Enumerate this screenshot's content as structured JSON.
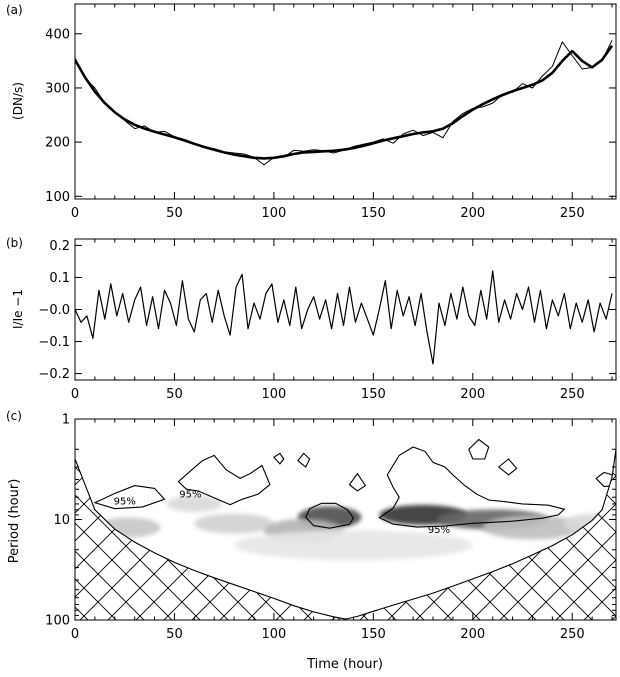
{
  "chart_data": [
    {
      "panel_label": "(a)",
      "type": "line",
      "ylabel": "(DN/s)",
      "xlim": [
        0,
        272
      ],
      "ylim": [
        95,
        455
      ],
      "x_ticks": [
        0,
        50,
        100,
        150,
        200,
        250
      ],
      "y_ticks": [
        100,
        200,
        300,
        400
      ],
      "series": [
        {
          "style": "thin-raw",
          "x": [
            0,
            5,
            10,
            15,
            20,
            25,
            30,
            35,
            40,
            45,
            50,
            55,
            60,
            65,
            70,
            75,
            80,
            85,
            90,
            95,
            100,
            105,
            110,
            115,
            120,
            125,
            130,
            135,
            140,
            145,
            150,
            155,
            160,
            165,
            170,
            175,
            180,
            185,
            190,
            195,
            200,
            205,
            210,
            215,
            220,
            225,
            230,
            235,
            240,
            245,
            250,
            255,
            260,
            265,
            270
          ],
          "values": [
            355,
            318,
            300,
            272,
            255,
            240,
            225,
            230,
            218,
            220,
            210,
            205,
            198,
            190,
            188,
            182,
            180,
            178,
            172,
            158,
            172,
            172,
            185,
            183,
            186,
            184,
            180,
            185,
            192,
            196,
            200,
            206,
            198,
            215,
            222,
            212,
            218,
            208,
            238,
            253,
            262,
            265,
            272,
            288,
            292,
            308,
            300,
            322,
            340,
            385,
            360,
            335,
            338,
            350,
            388
          ]
        },
        {
          "style": "thick-smooth",
          "x": [
            0,
            5,
            10,
            15,
            20,
            25,
            30,
            35,
            40,
            45,
            50,
            55,
            60,
            65,
            70,
            75,
            80,
            85,
            90,
            95,
            100,
            105,
            110,
            115,
            120,
            125,
            130,
            135,
            140,
            145,
            150,
            155,
            160,
            165,
            170,
            175,
            180,
            185,
            190,
            195,
            200,
            205,
            210,
            215,
            220,
            225,
            230,
            235,
            240,
            245,
            250,
            255,
            260,
            265,
            270
          ],
          "values": [
            352,
            320,
            293,
            272,
            255,
            242,
            232,
            225,
            219,
            214,
            209,
            203,
            197,
            191,
            186,
            181,
            177,
            174,
            171,
            170,
            171,
            174,
            178,
            181,
            182,
            183,
            184,
            186,
            189,
            193,
            198,
            203,
            207,
            211,
            215,
            218,
            220,
            225,
            235,
            248,
            260,
            270,
            279,
            287,
            294,
            300,
            306,
            314,
            328,
            350,
            368,
            350,
            338,
            352,
            378
          ]
        }
      ]
    },
    {
      "panel_label": "(b)",
      "type": "line",
      "ylabel": "I/Ie −1",
      "xlim": [
        0,
        272
      ],
      "ylim": [
        -0.22,
        0.22
      ],
      "x_ticks": [
        0,
        50,
        100,
        150,
        200,
        250
      ],
      "y_ticks": [
        -0.2,
        -0.1,
        0.0,
        0.1,
        0.2
      ],
      "y_tick_labels": [
        "−0.2",
        "−0.1",
        "−0.0",
        "0.1",
        "0.2"
      ],
      "series": [
        {
          "x": [
            0,
            3,
            6,
            9,
            12,
            15,
            18,
            21,
            24,
            27,
            30,
            33,
            36,
            39,
            42,
            45,
            48,
            51,
            54,
            57,
            60,
            63,
            66,
            69,
            72,
            75,
            78,
            81,
            84,
            87,
            90,
            93,
            96,
            99,
            102,
            105,
            108,
            111,
            114,
            117,
            120,
            123,
            126,
            129,
            132,
            135,
            138,
            141,
            144,
            147,
            150,
            153,
            156,
            159,
            162,
            165,
            168,
            171,
            174,
            177,
            180,
            183,
            186,
            189,
            192,
            195,
            198,
            201,
            204,
            207,
            210,
            213,
            216,
            219,
            222,
            225,
            228,
            231,
            234,
            237,
            240,
            243,
            246,
            249,
            252,
            255,
            258,
            261,
            264,
            267,
            270
          ],
          "values": [
            0.0,
            -0.04,
            -0.02,
            -0.09,
            0.06,
            -0.03,
            0.08,
            -0.02,
            0.05,
            -0.04,
            0.03,
            0.07,
            -0.05,
            0.04,
            -0.06,
            0.06,
            0.02,
            -0.05,
            0.09,
            -0.03,
            -0.07,
            0.03,
            0.05,
            -0.04,
            0.06,
            -0.02,
            -0.08,
            0.07,
            0.11,
            -0.06,
            0.02,
            -0.03,
            0.05,
            0.08,
            -0.04,
            0.03,
            -0.05,
            0.07,
            -0.06,
            0.0,
            0.04,
            -0.03,
            0.03,
            -0.06,
            0.05,
            -0.05,
            0.07,
            -0.04,
            0.02,
            -0.03,
            -0.08,
            0.0,
            0.09,
            -0.06,
            0.06,
            -0.02,
            0.04,
            -0.05,
            0.05,
            -0.07,
            -0.17,
            0.02,
            -0.05,
            0.05,
            -0.03,
            0.07,
            -0.02,
            -0.05,
            0.06,
            -0.03,
            0.12,
            -0.04,
            0.03,
            -0.03,
            0.05,
            0.0,
            0.07,
            -0.04,
            0.06,
            -0.06,
            0.03,
            -0.02,
            0.05,
            -0.06,
            0.02,
            -0.04,
            0.03,
            -0.07,
            0.02,
            -0.03,
            0.05
          ]
        }
      ]
    },
    {
      "panel_label": "(c)",
      "type": "heatmap",
      "xlabel": "Time (hour)",
      "ylabel": "Period (hour)",
      "xlim": [
        0,
        272
      ],
      "ylim": [
        1,
        100
      ],
      "y_scale": "log",
      "y_reversed": true,
      "x_ticks": [
        0,
        50,
        100,
        150,
        200,
        250
      ],
      "y_ticks": [
        1,
        10,
        100
      ],
      "power_blobs": [
        {
          "x": 27,
          "period": 12,
          "dx": 16,
          "dlog": 0.1,
          "intensity": 0.22
        },
        {
          "x": 80,
          "period": 11,
          "dx": 20,
          "dlog": 0.1,
          "intensity": 0.18
        },
        {
          "x": 60,
          "period": 7,
          "dx": 14,
          "dlog": 0.08,
          "intensity": 0.15
        },
        {
          "x": 128,
          "period": 9.5,
          "dx": 16,
          "dlog": 0.11,
          "intensity": 0.7
        },
        {
          "x": 115,
          "period": 13,
          "dx": 20,
          "dlog": 0.12,
          "intensity": 0.3
        },
        {
          "x": 175,
          "period": 9,
          "dx": 22,
          "dlog": 0.1,
          "intensity": 0.8
        },
        {
          "x": 210,
          "period": 10,
          "dx": 28,
          "dlog": 0.1,
          "intensity": 0.6
        },
        {
          "x": 230,
          "period": 12,
          "dx": 25,
          "dlog": 0.12,
          "intensity": 0.25
        },
        {
          "x": 250,
          "period": 25,
          "dx": 20,
          "dlog": 0.15,
          "intensity": 0.18
        },
        {
          "x": 260,
          "period": 11,
          "dx": 14,
          "dlog": 0.1,
          "intensity": 0.15
        },
        {
          "x": 140,
          "period": 18,
          "dx": 60,
          "dlog": 0.15,
          "intensity": 0.1
        }
      ],
      "contour_label": "95%",
      "contour_labels_at": [
        {
          "x": 25,
          "period": 6.5
        },
        {
          "x": 58,
          "period": 5.5
        },
        {
          "x": 183,
          "period": 12.5
        }
      ],
      "contours_95": [
        [
          [
            10,
            6.8
          ],
          [
            20,
            5.5
          ],
          [
            30,
            4.6
          ],
          [
            40,
            4.9
          ],
          [
            45,
            6.3
          ],
          [
            34,
            7.5
          ],
          [
            20,
            7.8
          ],
          [
            10,
            6.8
          ]
        ],
        [
          [
            52,
            4.2
          ],
          [
            58,
            3.3
          ],
          [
            64,
            2.6
          ],
          [
            70,
            2.3
          ],
          [
            76,
            3.2
          ],
          [
            83,
            3.9
          ],
          [
            88,
            3.5
          ],
          [
            94,
            2.9
          ],
          [
            98,
            4.5
          ],
          [
            92,
            5.6
          ],
          [
            84,
            6.3
          ],
          [
            78,
            7.1
          ],
          [
            70,
            6.1
          ],
          [
            62,
            5.2
          ],
          [
            56,
            5.0
          ],
          [
            52,
            4.2
          ]
        ],
        [
          [
            100,
            2.4
          ],
          [
            103,
            2.2
          ],
          [
            105,
            2.5
          ],
          [
            103,
            2.8
          ],
          [
            100,
            2.4
          ]
        ],
        [
          [
            112,
            2.6
          ],
          [
            115,
            2.2
          ],
          [
            118,
            2.5
          ],
          [
            116,
            3.0
          ],
          [
            112,
            2.6
          ]
        ],
        [
          [
            118,
            7.8
          ],
          [
            124,
            6.9
          ],
          [
            131,
            6.9
          ],
          [
            137,
            8.0
          ],
          [
            140,
            9.7
          ],
          [
            138,
            11.2
          ],
          [
            128,
            12.2
          ],
          [
            120,
            11.5
          ],
          [
            116,
            9.5
          ],
          [
            118,
            7.8
          ]
        ],
        [
          [
            153,
            9.6
          ],
          [
            160,
            7.7
          ],
          [
            163,
            6.0
          ],
          [
            160,
            4.8
          ],
          [
            157,
            3.6
          ],
          [
            163,
            2.3
          ],
          [
            170,
            1.9
          ],
          [
            176,
            2.1
          ],
          [
            180,
            2.7
          ],
          [
            186,
            3.0
          ],
          [
            190,
            3.6
          ],
          [
            196,
            4.6
          ],
          [
            202,
            5.6
          ],
          [
            208,
            6.4
          ],
          [
            215,
            6.6
          ],
          [
            225,
            7.0
          ],
          [
            238,
            7.2
          ],
          [
            246,
            7.9
          ],
          [
            243,
            9.0
          ],
          [
            235,
            9.7
          ],
          [
            220,
            10.4
          ],
          [
            200,
            10.9
          ],
          [
            186,
            11.6
          ],
          [
            172,
            11.9
          ],
          [
            160,
            11.1
          ],
          [
            153,
            9.6
          ]
        ],
        [
          [
            138,
            4.5
          ],
          [
            142,
            3.5
          ],
          [
            146,
            4.6
          ],
          [
            142,
            5.2
          ],
          [
            138,
            4.5
          ]
        ],
        [
          [
            213,
            3.0
          ],
          [
            218,
            2.5
          ],
          [
            222,
            3.1
          ],
          [
            218,
            3.6
          ],
          [
            213,
            3.0
          ]
        ],
        [
          [
            198,
            2.0
          ],
          [
            203,
            1.6
          ],
          [
            208,
            1.9
          ],
          [
            206,
            2.5
          ],
          [
            200,
            2.5
          ],
          [
            198,
            2.0
          ]
        ],
        [
          [
            262,
            3.9
          ],
          [
            266,
            3.4
          ],
          [
            270,
            3.6
          ],
          [
            271,
            4.6
          ],
          [
            266,
            4.7
          ],
          [
            262,
            3.9
          ]
        ]
      ],
      "coi": {
        "x": [
          0,
          10,
          20,
          30,
          40,
          50,
          60,
          70,
          80,
          90,
          100,
          110,
          120,
          130,
          136,
          142,
          150,
          160,
          170,
          180,
          190,
          200,
          210,
          220,
          230,
          240,
          250,
          260,
          265,
          270,
          272
        ],
        "period": [
          2.5,
          8.0,
          12.5,
          16.8,
          21.5,
          26.7,
          32.2,
          38.0,
          44.5,
          52,
          61,
          72,
          83,
          93,
          98,
          92,
          82,
          71,
          62,
          54,
          46,
          39,
          33,
          27.5,
          22.5,
          18.2,
          14.2,
          10.2,
          8.0,
          3.8,
          2.0
        ]
      }
    }
  ]
}
